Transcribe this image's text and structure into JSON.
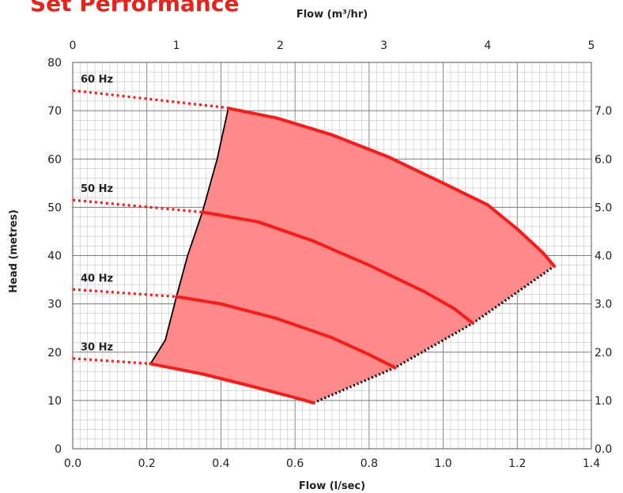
{
  "title": "Set Performance",
  "chart_data": {
    "type": "line",
    "title": "Set Performance",
    "xlabel": "Flow (l/sec)",
    "x2label": "Flow (m³/hr)",
    "ylabel": "Head (metres)",
    "xlim": [
      0,
      1.4
    ],
    "ylim": [
      0,
      80
    ],
    "x2lim": [
      0,
      5
    ],
    "y2lim": [
      0,
      8
    ],
    "x_ticks": [
      "0.0",
      "0.2",
      "0.4",
      "0.6",
      "0.8",
      "1.0",
      "1.2",
      "1.4"
    ],
    "y_ticks": [
      "0",
      "10",
      "20",
      "30",
      "40",
      "50",
      "60",
      "70",
      "80"
    ],
    "x2_ticks": [
      "0",
      "1",
      "2",
      "3",
      "4",
      "5"
    ],
    "y2_ticks": [
      "0.0",
      "1.0",
      "2.0",
      "3.0",
      "4.0",
      "5.0",
      "6.0",
      "7.0"
    ],
    "grid": true,
    "colors": {
      "curve": "#ff1a1a",
      "region": "#ff8a8a",
      "boundary": "#000000",
      "title": "#e8221c"
    },
    "series": [
      {
        "name": "60 Hz",
        "dotted": [
          [
            0.0,
            74.2
          ],
          [
            0.43,
            70.5
          ]
        ],
        "values": [
          [
            0.42,
            70.5
          ],
          [
            0.55,
            68.5
          ],
          [
            0.7,
            65.0
          ],
          [
            0.85,
            60.5
          ],
          [
            1.0,
            55.0
          ],
          [
            1.12,
            50.5
          ],
          [
            1.2,
            45.5
          ],
          [
            1.27,
            40.5
          ],
          [
            1.3,
            37.8
          ]
        ]
      },
      {
        "name": "50 Hz",
        "dotted": [
          [
            0.0,
            51.5
          ],
          [
            0.35,
            49.0
          ]
        ],
        "values": [
          [
            0.35,
            49.0
          ],
          [
            0.5,
            47.0
          ],
          [
            0.65,
            43.0
          ],
          [
            0.8,
            38.0
          ],
          [
            0.95,
            32.5
          ],
          [
            1.03,
            29.0
          ],
          [
            1.08,
            26.0
          ]
        ]
      },
      {
        "name": "40 Hz",
        "dotted": [
          [
            0.0,
            33.0
          ],
          [
            0.28,
            31.5
          ]
        ],
        "values": [
          [
            0.28,
            31.5
          ],
          [
            0.4,
            30.0
          ],
          [
            0.55,
            27.0
          ],
          [
            0.7,
            23.0
          ],
          [
            0.8,
            19.5
          ],
          [
            0.87,
            16.8
          ]
        ]
      },
      {
        "name": "30 Hz",
        "dotted": [
          [
            0.0,
            18.7
          ],
          [
            0.21,
            17.6
          ]
        ],
        "values": [
          [
            0.21,
            17.6
          ],
          [
            0.35,
            15.5
          ],
          [
            0.48,
            13.0
          ],
          [
            0.59,
            10.8
          ],
          [
            0.65,
            9.5
          ]
        ]
      }
    ],
    "operating_region": {
      "left_boundary": [
        [
          0.21,
          17.6
        ],
        [
          0.25,
          22.5
        ],
        [
          0.28,
          31.5
        ],
        [
          0.31,
          40.0
        ],
        [
          0.35,
          49.0
        ],
        [
          0.39,
          60.0
        ],
        [
          0.42,
          70.5
        ]
      ],
      "right_boundary": [
        [
          0.65,
          9.5
        ],
        [
          0.87,
          16.8
        ],
        [
          1.08,
          26.0
        ],
        [
          1.3,
          37.8
        ]
      ]
    }
  }
}
